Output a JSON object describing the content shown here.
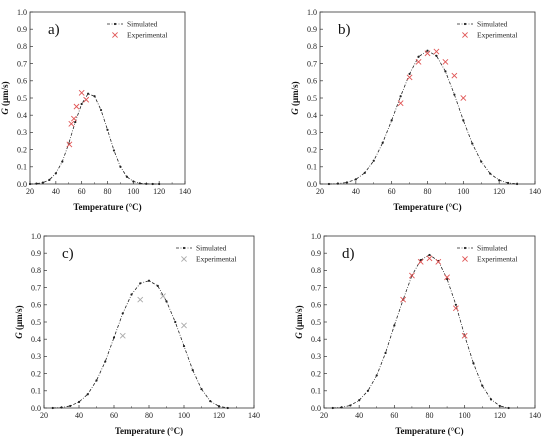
{
  "chart_data": [
    {
      "type": "scatter",
      "panel_label": "a)",
      "xlabel": "Temperature (°C)",
      "ylabel": "G (μm/s)",
      "xlim": [
        20,
        140
      ],
      "ylim": [
        0,
        1.0
      ],
      "xticks": [
        20,
        40,
        60,
        80,
        100,
        120,
        140
      ],
      "yticks": [
        0,
        0.1,
        0.2,
        0.3,
        0.4,
        0.5,
        0.6,
        0.7,
        0.8,
        0.9,
        1.0
      ],
      "legend": {
        "placement": "top-right",
        "entries": [
          "Simulated",
          "Experimental"
        ]
      },
      "series": [
        {
          "name": "Simulated",
          "style": "dash-dot line with dots",
          "color": "#222222",
          "x": [
            20,
            25,
            30,
            35,
            40,
            45,
            50,
            55,
            60,
            65,
            70,
            75,
            80,
            85,
            90,
            95,
            100,
            105,
            110,
            115,
            120
          ],
          "y": [
            0.0,
            0.002,
            0.008,
            0.024,
            0.062,
            0.13,
            0.235,
            0.36,
            0.465,
            0.525,
            0.51,
            0.43,
            0.315,
            0.195,
            0.1,
            0.042,
            0.015,
            0.004,
            0.001,
            0.0,
            0.0
          ]
        },
        {
          "name": "Experimental",
          "marker": "x",
          "color": "#e05555",
          "x": [
            50.5,
            52,
            54,
            56,
            60,
            63.5
          ],
          "y": [
            0.23,
            0.35,
            0.38,
            0.45,
            0.53,
            0.49
          ]
        }
      ]
    },
    {
      "type": "scatter",
      "panel_label": "b)",
      "xlabel": "Temperature (°C)",
      "ylabel": "G (μm/s)",
      "xlim": [
        20,
        140
      ],
      "ylim": [
        0,
        1.0
      ],
      "xticks": [
        20,
        40,
        60,
        80,
        100,
        120,
        140
      ],
      "yticks": [
        0,
        0.1,
        0.2,
        0.3,
        0.4,
        0.5,
        0.6,
        0.7,
        0.8,
        0.9,
        1.0
      ],
      "legend": {
        "placement": "top-right",
        "entries": [
          "Simulated",
          "Experimental"
        ]
      },
      "series": [
        {
          "name": "Simulated",
          "style": "dash-dot line with dots",
          "color": "#222222",
          "x": [
            25,
            30,
            35,
            40,
            45,
            50,
            55,
            60,
            65,
            70,
            75,
            80,
            85,
            90,
            95,
            100,
            105,
            110,
            115,
            120,
            125,
            130
          ],
          "y": [
            0.0,
            0.002,
            0.009,
            0.027,
            0.065,
            0.135,
            0.24,
            0.37,
            0.51,
            0.64,
            0.74,
            0.775,
            0.745,
            0.655,
            0.52,
            0.37,
            0.235,
            0.13,
            0.06,
            0.022,
            0.006,
            0.0
          ]
        },
        {
          "name": "Experimental",
          "marker": "x",
          "color": "#e05555",
          "x": [
            65,
            70,
            75,
            80,
            85,
            90,
            95,
            100
          ],
          "y": [
            0.47,
            0.62,
            0.71,
            0.76,
            0.77,
            0.71,
            0.63,
            0.5
          ]
        }
      ]
    },
    {
      "type": "scatter",
      "panel_label": "c)",
      "xlabel": "Temperature (°C)",
      "ylabel": "G (μm/s)",
      "xlim": [
        20,
        140
      ],
      "ylim": [
        0,
        1.0
      ],
      "xticks": [
        20,
        40,
        60,
        80,
        100,
        120,
        140
      ],
      "yticks": [
        0,
        0.1,
        0.2,
        0.3,
        0.4,
        0.5,
        0.6,
        0.7,
        0.8,
        0.9,
        1.0
      ],
      "legend": {
        "placement": "top-right",
        "entries": [
          "Simulated",
          "Experimental"
        ]
      },
      "series": [
        {
          "name": "Simulated",
          "style": "dash-dot line with dots",
          "color": "#222222",
          "x": [
            25,
            30,
            35,
            40,
            45,
            50,
            55,
            60,
            65,
            70,
            75,
            80,
            85,
            90,
            95,
            100,
            105,
            110,
            115,
            120,
            125
          ],
          "y": [
            0.0,
            0.003,
            0.012,
            0.035,
            0.08,
            0.16,
            0.27,
            0.41,
            0.55,
            0.66,
            0.725,
            0.74,
            0.71,
            0.62,
            0.5,
            0.36,
            0.22,
            0.11,
            0.04,
            0.01,
            0.0
          ]
        },
        {
          "name": "Experimental",
          "marker": "x",
          "color": "#aaaaaa",
          "x": [
            65,
            75,
            88,
            100
          ],
          "y": [
            0.42,
            0.63,
            0.65,
            0.48
          ]
        }
      ]
    },
    {
      "type": "scatter",
      "panel_label": "d)",
      "xlabel": "Temperature (°C)",
      "ylabel": "G (μm/s)",
      "xlim": [
        20,
        140
      ],
      "ylim": [
        0,
        1.0
      ],
      "xticks": [
        20,
        40,
        60,
        80,
        100,
        120,
        140
      ],
      "yticks": [
        0,
        0.1,
        0.2,
        0.3,
        0.4,
        0.5,
        0.6,
        0.7,
        0.8,
        0.9,
        1.0
      ],
      "legend": {
        "placement": "top-right",
        "entries": [
          "Simulated",
          "Experimental"
        ]
      },
      "series": [
        {
          "name": "Simulated",
          "style": "dash-dot line with dots",
          "color": "#222222",
          "x": [
            25,
            30,
            35,
            40,
            45,
            50,
            55,
            60,
            65,
            70,
            75,
            80,
            85,
            90,
            95,
            100,
            105,
            110,
            115,
            120,
            125
          ],
          "y": [
            0.0,
            0.004,
            0.015,
            0.045,
            0.1,
            0.19,
            0.32,
            0.48,
            0.63,
            0.77,
            0.86,
            0.89,
            0.855,
            0.75,
            0.6,
            0.42,
            0.26,
            0.13,
            0.05,
            0.012,
            0.0
          ]
        },
        {
          "name": "Experimental",
          "marker": "x",
          "color": "#e05555",
          "x": [
            65,
            70,
            75,
            80,
            85,
            90,
            95,
            100
          ],
          "y": [
            0.63,
            0.77,
            0.85,
            0.87,
            0.85,
            0.76,
            0.58,
            0.42
          ]
        }
      ]
    }
  ]
}
